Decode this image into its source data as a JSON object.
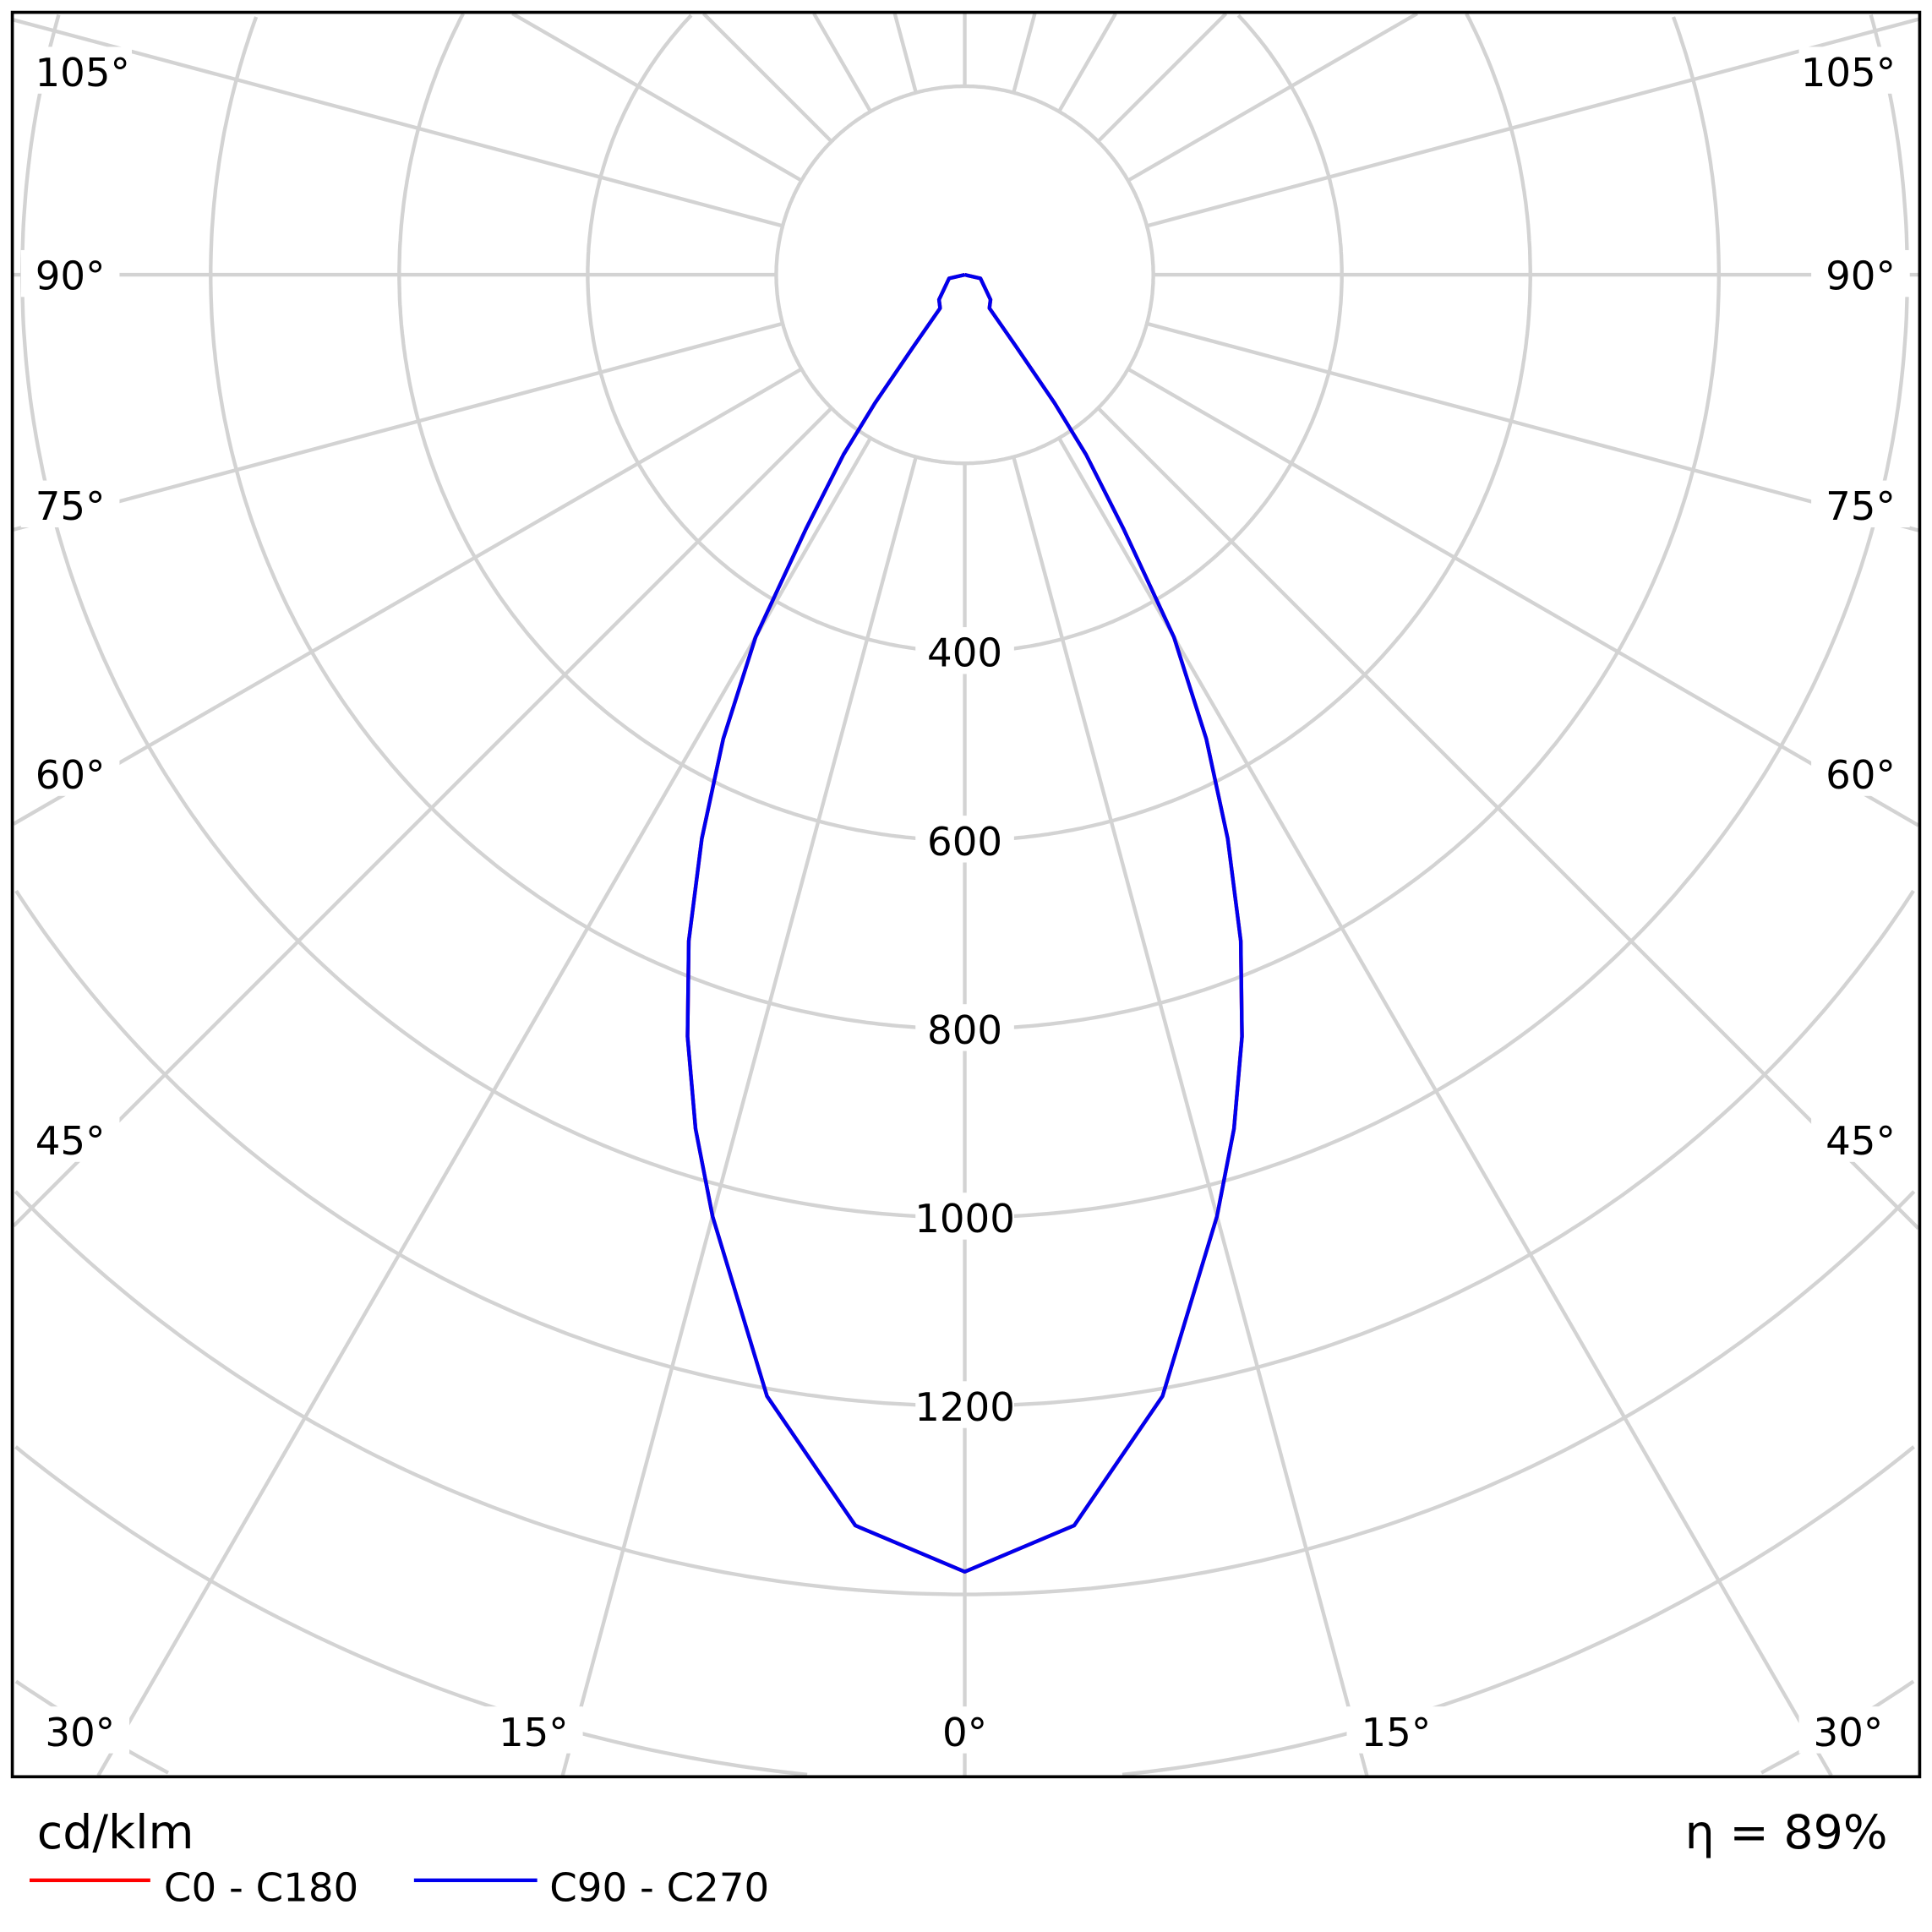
{
  "chart_data": {
    "type": "polar",
    "unit_label": "cd/klm",
    "efficiency_label": "η = 89%",
    "radial_ticks": [
      400,
      600,
      800,
      1000,
      1200
    ],
    "radial_grid": [
      200,
      400,
      600,
      800,
      1000,
      1200,
      1400,
      1600,
      1800,
      2000
    ],
    "angle_labels": [
      "105°",
      "90°",
      "75°",
      "60°",
      "45°",
      "30°",
      "15°",
      "0°"
    ],
    "grid": true,
    "legend_placement": "bottom-left",
    "series": [
      {
        "name": "C0 - C180",
        "color": "#ff0000",
        "angles": [
          0,
          5,
          10,
          15,
          17.5,
          20,
          22.5,
          25,
          27.5,
          30,
          32,
          34,
          35,
          35.5,
          36.5,
          46,
          77,
          90
        ],
        "values": [
          1376,
          1332,
          1208,
          1034,
          950,
          860,
          765,
          660,
          555,
          444,
          318,
          230,
          166,
          94,
          44,
          38,
          17,
          0
        ]
      },
      {
        "name": "C90 - C270",
        "color": "#0000ee",
        "angles": [
          0,
          5,
          10,
          15,
          17.5,
          20,
          22.5,
          25,
          27.5,
          30,
          32,
          34,
          35,
          35.5,
          36.5,
          46,
          77,
          90
        ],
        "values": [
          1376,
          1332,
          1208,
          1034,
          950,
          860,
          765,
          660,
          555,
          444,
          318,
          230,
          166,
          94,
          44,
          38,
          17,
          0
        ]
      }
    ]
  }
}
